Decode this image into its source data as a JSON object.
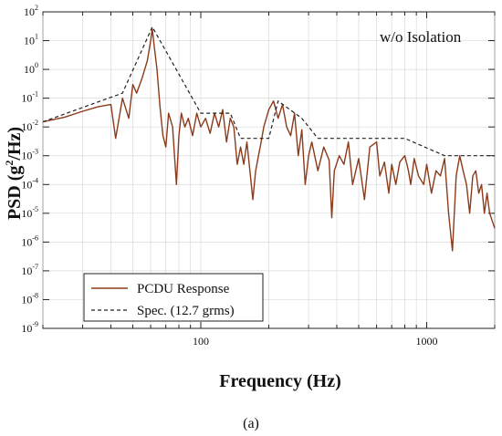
{
  "chart_data": {
    "type": "line",
    "title": "",
    "annotation": "w/o Isolation",
    "caption": "(a)",
    "xlabel": "Frequency (Hz)",
    "ylabel": {
      "prefix": "PSD (g",
      "sup": "2",
      "suffix": "/Hz)"
    },
    "xscale": "log",
    "yscale": "log",
    "xlim": [
      20,
      2000
    ],
    "ylim": [
      1e-09,
      100
    ],
    "x_ticks": [
      {
        "value": 100,
        "label": "100"
      },
      {
        "value": 1000,
        "label": "1000"
      }
    ],
    "y_ticks": [
      {
        "value": 1e-09,
        "base": "10",
        "exp": "-9"
      },
      {
        "value": 1e-08,
        "base": "10",
        "exp": "-8"
      },
      {
        "value": 1e-07,
        "base": "10",
        "exp": "-7"
      },
      {
        "value": 1e-06,
        "base": "10",
        "exp": "-6"
      },
      {
        "value": 1e-05,
        "base": "10",
        "exp": "-5"
      },
      {
        "value": 0.0001,
        "base": "10",
        "exp": "-4"
      },
      {
        "value": 0.001,
        "base": "10",
        "exp": "-3"
      },
      {
        "value": 0.01,
        "base": "10",
        "exp": "-2"
      },
      {
        "value": 0.1,
        "base": "10",
        "exp": "-1"
      },
      {
        "value": 1,
        "base": "10",
        "exp": "0"
      },
      {
        "value": 10,
        "base": "10",
        "exp": "1"
      },
      {
        "value": 100,
        "base": "10",
        "exp": "2"
      }
    ],
    "grid": true,
    "legend_position": "bottom-left",
    "series": [
      {
        "name": "PCDU Response",
        "color": "#8B3A1A",
        "style": "solid",
        "points": [
          [
            20,
            0.015
          ],
          [
            25,
            0.022
          ],
          [
            30,
            0.035
          ],
          [
            35,
            0.05
          ],
          [
            40,
            0.06
          ],
          [
            42,
            0.004
          ],
          [
            45,
            0.1
          ],
          [
            48,
            0.02
          ],
          [
            50,
            0.3
          ],
          [
            52,
            0.15
          ],
          [
            55,
            0.5
          ],
          [
            58,
            2
          ],
          [
            60,
            10
          ],
          [
            61,
            25
          ],
          [
            62,
            8
          ],
          [
            64,
            1
          ],
          [
            66,
            0.05
          ],
          [
            68,
            0.005
          ],
          [
            70,
            0.002
          ],
          [
            72,
            0.03
          ],
          [
            75,
            0.01
          ],
          [
            78,
            0.0001
          ],
          [
            80,
            0.005
          ],
          [
            82,
            0.03
          ],
          [
            85,
            0.01
          ],
          [
            88,
            0.02
          ],
          [
            92,
            0.005
          ],
          [
            96,
            0.03
          ],
          [
            100,
            0.01
          ],
          [
            105,
            0.02
          ],
          [
            110,
            0.006
          ],
          [
            115,
            0.03
          ],
          [
            120,
            0.01
          ],
          [
            125,
            0.04
          ],
          [
            130,
            0.003
          ],
          [
            135,
            0.02
          ],
          [
            140,
            0.01
          ],
          [
            145,
            0.0005
          ],
          [
            150,
            0.002
          ],
          [
            155,
            0.0005
          ],
          [
            160,
            0.003
          ],
          [
            165,
            0.0003
          ],
          [
            170,
            3e-05
          ],
          [
            175,
            0.0003
          ],
          [
            180,
            0.001
          ],
          [
            185,
            0.003
          ],
          [
            190,
            0.01
          ],
          [
            200,
            0.04
          ],
          [
            210,
            0.08
          ],
          [
            220,
            0.02
          ],
          [
            230,
            0.06
          ],
          [
            240,
            0.01
          ],
          [
            250,
            0.005
          ],
          [
            260,
            0.03
          ],
          [
            270,
            0.001
          ],
          [
            280,
            0.008
          ],
          [
            290,
            0.0001
          ],
          [
            300,
            0.001
          ],
          [
            310,
            0.003
          ],
          [
            330,
            0.0003
          ],
          [
            350,
            0.002
          ],
          [
            370,
            0.0007
          ],
          [
            380,
            7e-06
          ],
          [
            390,
            0.0003
          ],
          [
            410,
            0.001
          ],
          [
            430,
            0.0005
          ],
          [
            450,
            0.003
          ],
          [
            470,
            0.0001
          ],
          [
            500,
            0.0008
          ],
          [
            530,
            3e-05
          ],
          [
            560,
            0.002
          ],
          [
            600,
            0.003
          ],
          [
            620,
            0.0002
          ],
          [
            650,
            0.0006
          ],
          [
            680,
            5e-05
          ],
          [
            700,
            0.0005
          ],
          [
            730,
            0.0001
          ],
          [
            760,
            0.0006
          ],
          [
            800,
            0.001
          ],
          [
            830,
            0.0003
          ],
          [
            850,
            0.0001
          ],
          [
            880,
            0.0008
          ],
          [
            920,
            0.0002
          ],
          [
            970,
            0.0001
          ],
          [
            1000,
            0.0005
          ],
          [
            1050,
            5e-05
          ],
          [
            1100,
            0.0003
          ],
          [
            1150,
            0.0002
          ],
          [
            1200,
            0.0008
          ],
          [
            1250,
            1e-05
          ],
          [
            1300,
            5e-07
          ],
          [
            1350,
            0.0002
          ],
          [
            1400,
            0.001
          ],
          [
            1450,
            0.0003
          ],
          [
            1500,
            0.0001
          ],
          [
            1550,
            1e-05
          ],
          [
            1600,
            0.0002
          ],
          [
            1650,
            0.0003
          ],
          [
            1700,
            5e-05
          ],
          [
            1750,
            0.0001
          ],
          [
            1800,
            1e-05
          ],
          [
            1850,
            5e-05
          ],
          [
            1900,
            1e-05
          ],
          [
            2000,
            3e-06
          ]
        ]
      },
      {
        "name": "Spec. (12.7 grms)",
        "color": "#222222",
        "style": "dashed",
        "points": [
          [
            20,
            0.015
          ],
          [
            45,
            0.15
          ],
          [
            61,
            30
          ],
          [
            100,
            0.03
          ],
          [
            135,
            0.03
          ],
          [
            150,
            0.004
          ],
          [
            200,
            0.004
          ],
          [
            220,
            0.08
          ],
          [
            280,
            0.02
          ],
          [
            330,
            0.004
          ],
          [
            800,
            0.004
          ],
          [
            1200,
            0.001
          ],
          [
            2000,
            0.001
          ]
        ]
      }
    ]
  }
}
